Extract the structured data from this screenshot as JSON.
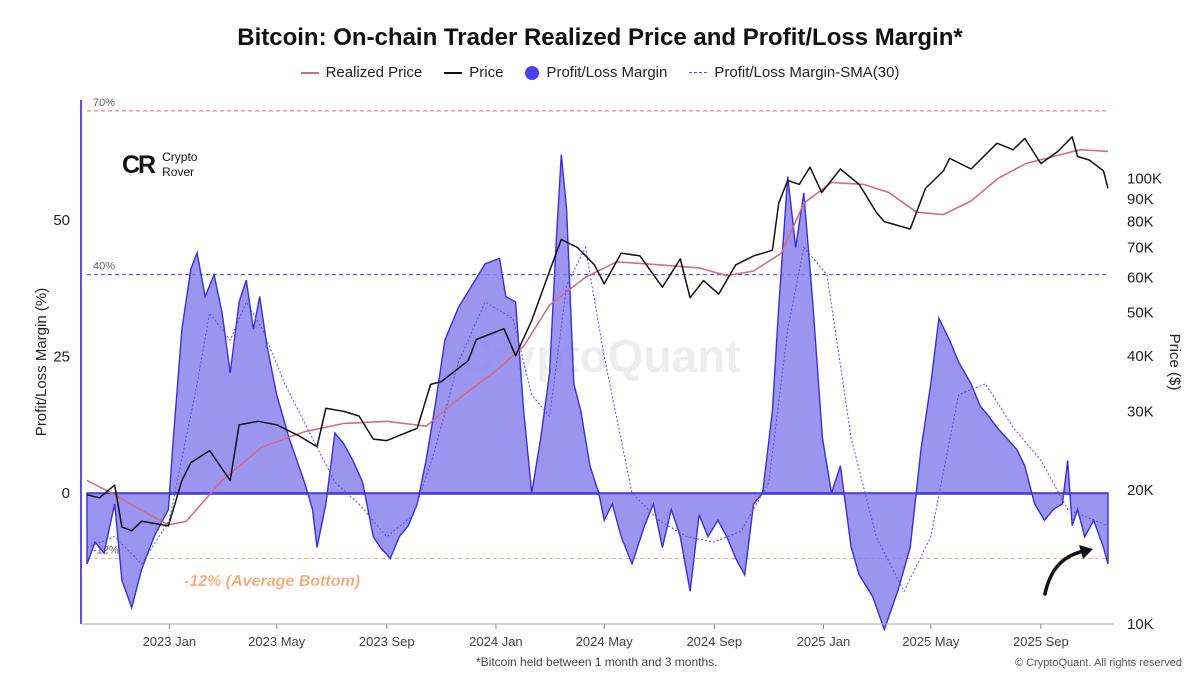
{
  "chart_data": {
    "type": "area",
    "title": "Bitcoin: On-chain Trader Realized Price and Profit/Loss Margin*",
    "footnote": "*Bitcoin held between 1 month and 3 months.",
    "copyright": "© CryptoQuant. All rights reserved",
    "watermark": "CryptoQuant",
    "logo": {
      "mark": "CR",
      "line1": "Crypto",
      "line2": "Rover"
    },
    "legend": [
      "Realized Price",
      "Price",
      "Profit/Loss Margin",
      "Profit/Loss Margin-SMA(30)"
    ],
    "left_axis": {
      "label": "Profit/Loss Margin (%)",
      "ticks": [
        "50",
        "25",
        "0"
      ],
      "values": [
        50,
        25,
        0
      ],
      "range": [
        -24,
        72
      ]
    },
    "right_axis": {
      "label": "Price ($)",
      "scale": "log",
      "ticks": [
        "100K",
        "90K",
        "80K",
        "70K",
        "60K",
        "50K",
        "40K",
        "30K",
        "20K",
        "10K"
      ],
      "values": [
        100000,
        90000,
        80000,
        70000,
        60000,
        50000,
        40000,
        30000,
        20000,
        10000
      ],
      "range": [
        10000,
        150000
      ]
    },
    "x_axis": {
      "ticks": [
        "2023 Jan",
        "2023 May",
        "2023 Sep",
        "2024 Jan",
        "2024 May",
        "2024 Sep",
        "2025 Jan",
        "2025 May",
        "2025 Sep"
      ],
      "tick_dates": [
        "2023-01-01",
        "2023-05-01",
        "2023-09-01",
        "2024-01-01",
        "2024-05-01",
        "2024-09-01",
        "2025-01-01",
        "2025-05-01",
        "2025-09-01"
      ],
      "range": [
        "2022-10-01",
        "2025-11-15"
      ]
    },
    "reference_lines": [
      {
        "value": 70,
        "label": "70%",
        "color": "#d96a5a"
      },
      {
        "value": 40,
        "label": "40%",
        "color": "#4a45d8"
      },
      {
        "value": -12,
        "label": "-12%",
        "color": "#e8b48c"
      }
    ],
    "annotation": "-12% (Average Bottom)",
    "colors": {
      "margin_fill": "#8a82ec",
      "margin_stroke": "#3b2fd6",
      "sma": "#5a4fe0",
      "price": "#111111",
      "realized": "#d36b8a",
      "annotation": "#f3a06b"
    },
    "series": [
      {
        "name": "Profit/Loss Margin",
        "x": [
          "2022-10-01",
          "2022-10-10",
          "2022-10-20",
          "2022-11-01",
          "2022-11-09",
          "2022-11-20",
          "2022-12-01",
          "2022-12-15",
          "2022-12-31",
          "2023-01-05",
          "2023-01-15",
          "2023-01-25",
          "2023-02-01",
          "2023-02-10",
          "2023-02-20",
          "2023-03-01",
          "2023-03-10",
          "2023-03-20",
          "2023-03-28",
          "2023-04-05",
          "2023-04-12",
          "2023-04-20",
          "2023-05-01",
          "2023-05-15",
          "2023-06-01",
          "2023-06-10",
          "2023-06-15",
          "2023-06-25",
          "2023-07-05",
          "2023-07-15",
          "2023-07-25",
          "2023-08-05",
          "2023-08-17",
          "2023-08-25",
          "2023-09-05",
          "2023-09-15",
          "2023-09-25",
          "2023-10-05",
          "2023-10-15",
          "2023-10-25",
          "2023-11-05",
          "2023-11-20",
          "2023-12-05",
          "2023-12-20",
          "2024-01-05",
          "2024-01-12",
          "2024-01-23",
          "2024-02-01",
          "2024-02-10",
          "2024-02-20",
          "2024-03-01",
          "2024-03-08",
          "2024-03-14",
          "2024-03-20",
          "2024-03-28",
          "2024-04-05",
          "2024-04-15",
          "2024-04-25",
          "2024-05-01",
          "2024-05-10",
          "2024-05-20",
          "2024-06-01",
          "2024-06-15",
          "2024-06-25",
          "2024-07-05",
          "2024-07-15",
          "2024-07-25",
          "2024-08-05",
          "2024-08-15",
          "2024-08-25",
          "2024-09-05",
          "2024-09-15",
          "2024-09-25",
          "2024-10-05",
          "2024-10-15",
          "2024-10-25",
          "2024-11-05",
          "2024-11-12",
          "2024-11-22",
          "2024-12-01",
          "2024-12-10",
          "2024-12-20",
          "2024-12-31",
          "2025-01-10",
          "2025-01-20",
          "2025-02-01",
          "2025-02-10",
          "2025-02-25",
          "2025-03-10",
          "2025-03-25",
          "2025-04-08",
          "2025-04-20",
          "2025-05-01",
          "2025-05-10",
          "2025-05-22",
          "2025-06-01",
          "2025-06-15",
          "2025-06-25",
          "2025-07-05",
          "2025-07-14",
          "2025-07-25",
          "2025-08-05",
          "2025-08-14",
          "2025-08-25",
          "2025-09-05",
          "2025-09-15",
          "2025-09-25",
          "2025-10-01",
          "2025-10-06",
          "2025-10-12",
          "2025-10-20",
          "2025-10-30",
          "2025-11-10",
          "2025-11-15"
        ],
        "values": [
          -13,
          -9,
          -11,
          -2,
          -16,
          -21,
          -14,
          -8,
          -3,
          9,
          30,
          41,
          44,
          36,
          40,
          33,
          22,
          35,
          39,
          30,
          36,
          27,
          18,
          10,
          2,
          -3,
          -10,
          -2,
          11,
          9,
          6,
          2,
          -8,
          -10,
          -12,
          -8,
          -6,
          -2,
          6,
          16,
          28,
          34,
          38,
          42,
          43,
          36,
          35,
          15,
          0,
          10,
          22,
          45,
          62,
          52,
          20,
          15,
          5,
          0,
          -5,
          -2,
          -8,
          -13,
          -6,
          -2,
          -10,
          -3,
          -8,
          -18,
          -4,
          -8,
          -5,
          -8,
          -12,
          -15,
          -2,
          0,
          15,
          34,
          58,
          45,
          55,
          35,
          10,
          0,
          5,
          -10,
          -15,
          -19,
          -25,
          -18,
          -10,
          8,
          20,
          32,
          28,
          24,
          20,
          16,
          14,
          12,
          10,
          8,
          5,
          -2,
          -5,
          -3,
          -2,
          6,
          -6,
          -3,
          -8,
          -5,
          -10,
          -13
        ],
        "ylabel": "Profit/Loss Margin (%)"
      },
      {
        "name": "Profit/Loss Margin-SMA(30)",
        "x": [
          "2022-10-01",
          "2022-11-01",
          "2022-12-01",
          "2023-01-01",
          "2023-02-01",
          "2023-02-15",
          "2023-03-10",
          "2023-03-28",
          "2023-04-15",
          "2023-05-10",
          "2023-06-10",
          "2023-07-05",
          "2023-08-01",
          "2023-09-01",
          "2023-10-01",
          "2023-10-25",
          "2023-11-20",
          "2023-12-20",
          "2024-01-20",
          "2024-02-10",
          "2024-03-01",
          "2024-03-20",
          "2024-04-10",
          "2024-05-01",
          "2024-06-01",
          "2024-07-01",
          "2024-08-01",
          "2024-09-01",
          "2024-10-01",
          "2024-11-01",
          "2024-11-22",
          "2024-12-10",
          "2025-01-05",
          "2025-02-01",
          "2025-03-01",
          "2025-04-01",
          "2025-05-01",
          "2025-06-01",
          "2025-07-01",
          "2025-08-01",
          "2025-09-01",
          "2025-10-01",
          "2025-11-15"
        ],
        "values": [
          -10,
          -8,
          -13,
          -5,
          20,
          33,
          28,
          35,
          30,
          20,
          10,
          2,
          -2,
          -8,
          -4,
          8,
          24,
          35,
          32,
          18,
          14,
          38,
          45,
          25,
          0,
          -5,
          -8,
          -9,
          -7,
          2,
          30,
          45,
          40,
          10,
          -8,
          -18,
          -8,
          18,
          20,
          12,
          6,
          -3,
          -6
        ]
      },
      {
        "name": "Price",
        "x": [
          "2022-10-01",
          "2022-10-15",
          "2022-11-01",
          "2022-11-09",
          "2022-11-20",
          "2022-12-01",
          "2022-12-31",
          "2023-01-15",
          "2023-01-25",
          "2023-02-15",
          "2023-03-10",
          "2023-03-20",
          "2023-04-10",
          "2023-05-01",
          "2023-05-25",
          "2023-06-15",
          "2023-06-25",
          "2023-07-15",
          "2023-08-01",
          "2023-08-17",
          "2023-09-01",
          "2023-09-15",
          "2023-10-05",
          "2023-10-20",
          "2023-11-01",
          "2023-12-01",
          "2023-12-10",
          "2024-01-10",
          "2024-01-23",
          "2024-02-10",
          "2024-03-01",
          "2024-03-14",
          "2024-04-01",
          "2024-04-20",
          "2024-05-01",
          "2024-05-20",
          "2024-06-10",
          "2024-07-05",
          "2024-07-25",
          "2024-08-05",
          "2024-08-20",
          "2024-09-06",
          "2024-09-25",
          "2024-10-15",
          "2024-11-05",
          "2024-11-12",
          "2024-11-22",
          "2024-12-05",
          "2024-12-17",
          "2024-12-30",
          "2025-01-20",
          "2025-02-10",
          "2025-03-01",
          "2025-03-10",
          "2025-04-08",
          "2025-04-25",
          "2025-05-15",
          "2025-05-22",
          "2025-06-15",
          "2025-07-14",
          "2025-08-01",
          "2025-08-14",
          "2025-09-01",
          "2025-09-20",
          "2025-10-06",
          "2025-10-12",
          "2025-10-25",
          "2025-11-10",
          "2025-11-15"
        ],
        "values": [
          19500,
          19200,
          20500,
          16500,
          16200,
          17000,
          16600,
          21000,
          23000,
          24500,
          21000,
          28000,
          28500,
          28000,
          26500,
          25000,
          30500,
          30000,
          29300,
          26000,
          25800,
          26500,
          27500,
          34500,
          35000,
          39000,
          43500,
          46000,
          40000,
          48000,
          62000,
          73000,
          70000,
          64000,
          58000,
          68000,
          67000,
          57000,
          66000,
          54000,
          59000,
          55000,
          64000,
          67000,
          69000,
          88000,
          99000,
          97000,
          106000,
          93000,
          105000,
          97000,
          84000,
          80000,
          77000,
          95000,
          104000,
          111000,
          105000,
          120000,
          116000,
          123000,
          108000,
          115000,
          124000,
          112000,
          110000,
          104000,
          95000
        ],
        "ylabel": "Price ($)"
      },
      {
        "name": "Realized Price",
        "x": [
          "2022-10-01",
          "2022-11-01",
          "2022-12-01",
          "2022-12-31",
          "2023-01-20",
          "2023-03-01",
          "2023-04-15",
          "2023-06-01",
          "2023-07-15",
          "2023-09-01",
          "2023-10-15",
          "2023-11-20",
          "2024-01-01",
          "2024-02-01",
          "2024-03-01",
          "2024-04-10",
          "2024-05-15",
          "2024-07-01",
          "2024-08-15",
          "2024-09-15",
          "2024-10-15",
          "2024-11-15",
          "2024-12-10",
          "2025-01-10",
          "2025-02-15",
          "2025-03-15",
          "2025-04-15",
          "2025-05-15",
          "2025-06-15",
          "2025-07-15",
          "2025-08-15",
          "2025-09-15",
          "2025-10-15",
          "2025-11-15"
        ],
        "values": [
          21000,
          19500,
          18000,
          16700,
          17000,
          21000,
          25000,
          27000,
          28200,
          28500,
          27800,
          32000,
          37000,
          42000,
          52000,
          60000,
          65000,
          64000,
          63000,
          60500,
          62000,
          68000,
          88000,
          98000,
          97000,
          93000,
          84000,
          83000,
          89000,
          100000,
          108000,
          112000,
          116000,
          115000
        ]
      }
    ]
  }
}
